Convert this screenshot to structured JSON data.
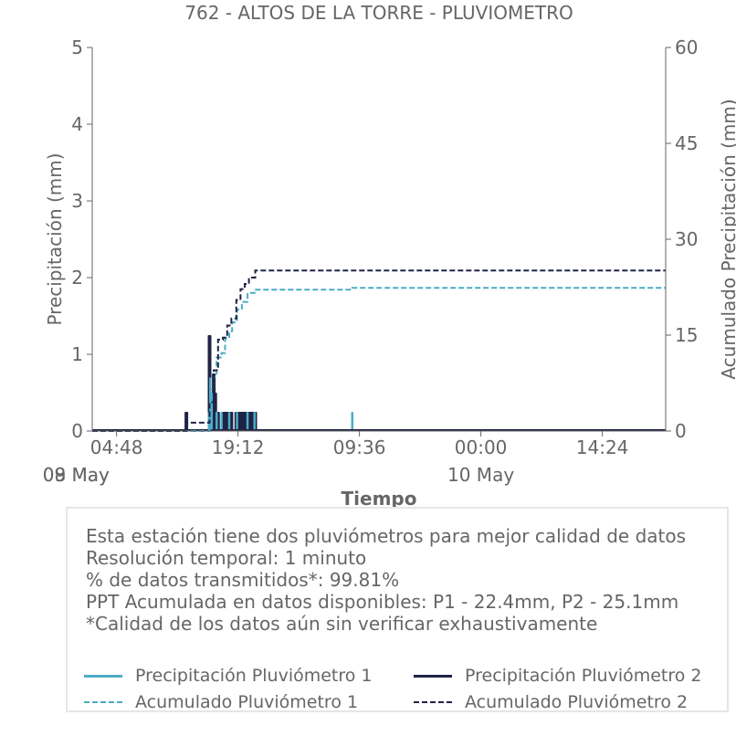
{
  "chart_data": {
    "type": "bar",
    "title": "762 - ALTOS DE LA TORRE - PLUVIOMETRO",
    "xlabel": "Tiempo",
    "ylabel": "Precipitación (mm)",
    "y2label": "Acumulado Precipitación (mm)",
    "ylim": [
      0,
      5
    ],
    "y2lim": [
      0,
      60
    ],
    "yticks": [
      "0",
      "1",
      "2",
      "3",
      "4",
      "5"
    ],
    "y2ticks": [
      "0",
      "15",
      "30",
      "45",
      "60"
    ],
    "xlim": [
      "2024-05-08 01:55",
      "2024-05-10 21:55"
    ],
    "xticks": [
      {
        "t": "2024-05-08 04:48",
        "label": "04:48",
        "date": "08 May"
      },
      {
        "t": "2024-05-08 19:12",
        "label": "19:12",
        "date": "09 May"
      },
      {
        "t": "2024-05-09 09:36",
        "label": "09:36",
        "date": ""
      },
      {
        "t": "2024-05-10 00:00",
        "label": "00:00",
        "date": "10 May"
      },
      {
        "t": "2024-05-10 14:24",
        "label": "14:24",
        "date": ""
      }
    ],
    "grid": false,
    "legend_placement": "bottom",
    "series": [
      {
        "name": "Precipitación Pluviómetro 1",
        "kind": "bar",
        "color": "#4bacc6",
        "points": [
          [
            "2024-05-08 15:45",
            0.25
          ],
          [
            "2024-05-08 15:55",
            0.7
          ],
          [
            "2024-05-08 16:05",
            0.5
          ],
          [
            "2024-05-08 16:40",
            0.25
          ],
          [
            "2024-05-08 17:15",
            0.25
          ],
          [
            "2024-05-08 18:10",
            0.25
          ],
          [
            "2024-05-08 19:05",
            0.25
          ],
          [
            "2024-05-08 20:20",
            0.25
          ],
          [
            "2024-05-08 21:10",
            0.25
          ],
          [
            "2024-05-09 08:45",
            0.25
          ]
        ]
      },
      {
        "name": "Precipitación Pluviómetro 2",
        "kind": "bar",
        "color": "#1f2344",
        "points": [
          [
            "2024-05-08 13:05",
            0.25
          ],
          [
            "2024-05-08 15:50",
            1.25
          ],
          [
            "2024-05-08 16:20",
            0.75
          ],
          [
            "2024-05-08 16:30",
            0.5
          ],
          [
            "2024-05-08 16:50",
            0.25
          ],
          [
            "2024-05-08 17:25",
            0.25
          ],
          [
            "2024-05-08 17:40",
            0.25
          ],
          [
            "2024-05-08 17:55",
            0.25
          ],
          [
            "2024-05-08 18:10",
            0.25
          ],
          [
            "2024-05-08 18:25",
            0.25
          ],
          [
            "2024-05-08 19:00",
            0.25
          ],
          [
            "2024-05-08 19:15",
            0.25
          ],
          [
            "2024-05-08 19:30",
            0.25
          ],
          [
            "2024-05-08 19:45",
            0.25
          ],
          [
            "2024-05-08 20:00",
            0.25
          ],
          [
            "2024-05-08 20:15",
            0.25
          ],
          [
            "2024-05-08 20:30",
            0.25
          ],
          [
            "2024-05-08 20:45",
            0.25
          ],
          [
            "2024-05-08 21:00",
            0.25
          ],
          [
            "2024-05-08 21:15",
            0.25
          ]
        ]
      },
      {
        "name": "Acumulado Pluviómetro 1",
        "kind": "step-dashed",
        "axis": "right",
        "color": "#4bacc6",
        "points": [
          [
            "2024-05-08 01:55",
            0
          ],
          [
            "2024-05-08 15:45",
            0.3
          ],
          [
            "2024-05-08 15:55",
            6.5
          ],
          [
            "2024-05-08 16:20",
            8.5
          ],
          [
            "2024-05-08 16:40",
            11.5
          ],
          [
            "2024-05-08 17:15",
            12.2
          ],
          [
            "2024-05-08 17:40",
            14.5
          ],
          [
            "2024-05-08 18:10",
            15.6
          ],
          [
            "2024-05-08 18:30",
            17.0
          ],
          [
            "2024-05-08 19:05",
            19.0
          ],
          [
            "2024-05-08 19:40",
            20.2
          ],
          [
            "2024-05-08 20:20",
            21.6
          ],
          [
            "2024-05-08 21:10",
            22.1
          ],
          [
            "2024-05-09 08:45",
            22.4
          ],
          [
            "2024-05-10 21:55",
            22.4
          ]
        ]
      },
      {
        "name": "Acumulado Pluviómetro 2",
        "kind": "step-dashed",
        "axis": "right",
        "color": "#1f2344",
        "points": [
          [
            "2024-05-08 01:55",
            0
          ],
          [
            "2024-05-08 13:05",
            1.3
          ],
          [
            "2024-05-08 15:50",
            4.5
          ],
          [
            "2024-05-08 16:20",
            9.5
          ],
          [
            "2024-05-08 16:50",
            14.3
          ],
          [
            "2024-05-08 17:25",
            14.6
          ],
          [
            "2024-05-08 17:55",
            16.5
          ],
          [
            "2024-05-08 18:25",
            17.6
          ],
          [
            "2024-05-08 19:00",
            20.5
          ],
          [
            "2024-05-08 19:30",
            22.2
          ],
          [
            "2024-05-08 20:00",
            23.0
          ],
          [
            "2024-05-08 20:30",
            24.0
          ],
          [
            "2024-05-08 21:15",
            25.1
          ],
          [
            "2024-05-10 21:55",
            25.1
          ]
        ]
      }
    ]
  },
  "info": {
    "lines": [
      "Esta estación tiene dos pluviómetros para mejor calidad de datos",
      "Resolución temporal: 1 minuto",
      "% de datos transmitidos*: 99.81%",
      "PPT Acumulada en datos disponibles: P1 - 22.4mm, P2 - 25.1mm",
      "*Calidad de los datos aún sin verificar exhaustivamente"
    ]
  },
  "legend": [
    {
      "label": "Precipitación Pluviómetro 1",
      "color": "#4bacc6",
      "style": "solid"
    },
    {
      "label": "Precipitación Pluviómetro 2",
      "color": "#1f2344",
      "style": "solid"
    },
    {
      "label": "Acumulado Pluviómetro 1",
      "color": "#4bacc6",
      "style": "dashed"
    },
    {
      "label": "Acumulado Pluviómetro 2",
      "color": "#1f2344",
      "style": "dashed"
    }
  ]
}
